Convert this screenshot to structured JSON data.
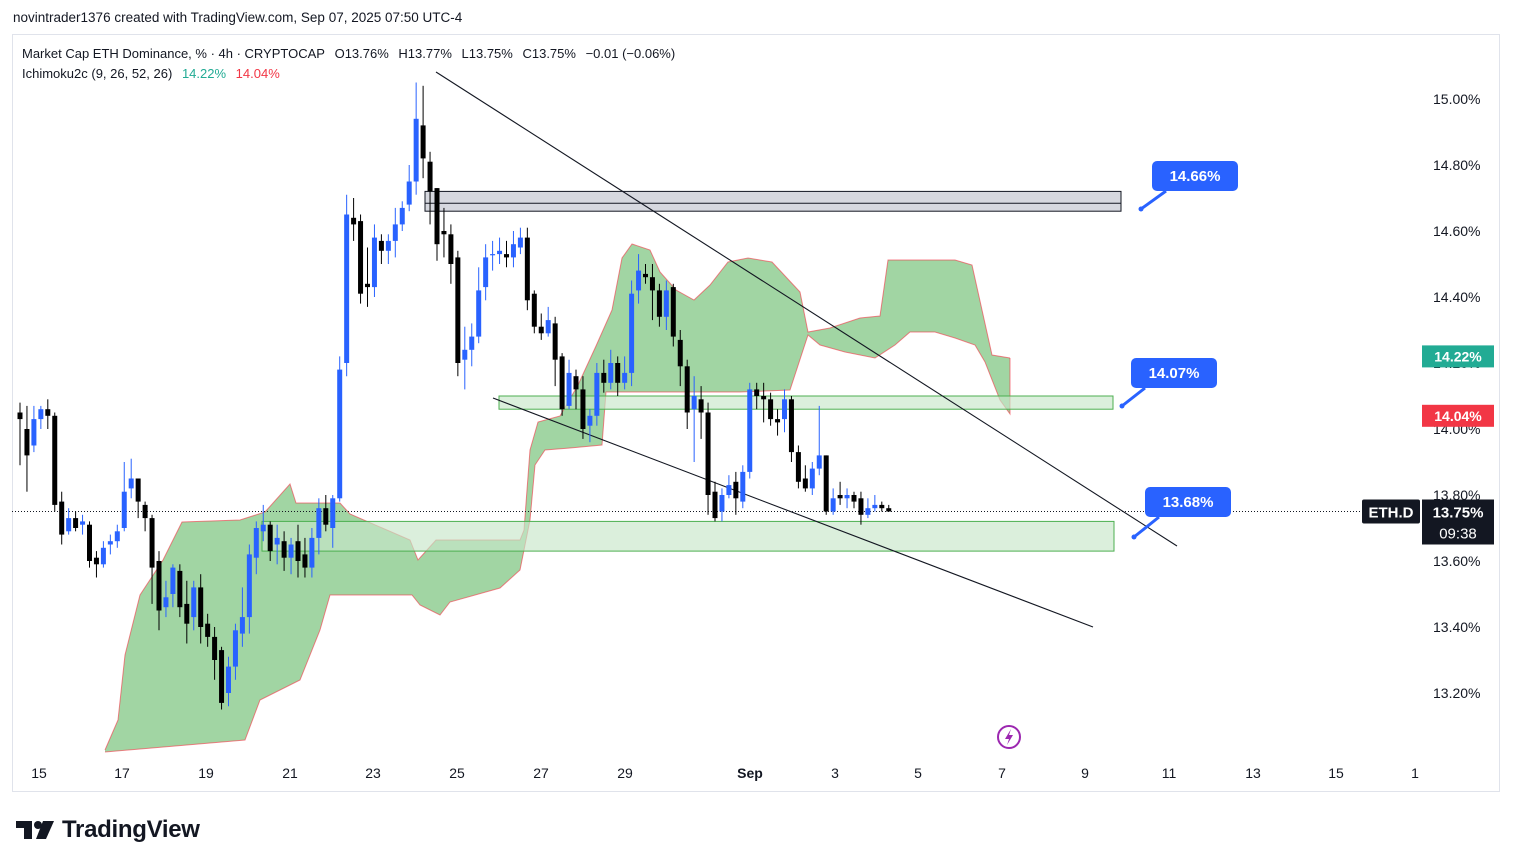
{
  "header": {
    "attribution": "novintrader1376 created with TradingView.com, Sep 07, 2025 07:50 UTC-4"
  },
  "legend": {
    "symbol_line": {
      "title": "Market Cap ETH Dominance, % · 4h · CRYPTOCAP",
      "open": "O13.76%",
      "high": "H13.77%",
      "low": "L13.75%",
      "close": "C13.75%",
      "change": "−0.01 (−0.06%)"
    },
    "indicator": {
      "name": "Ichimoku2c (9, 26, 52, 26)",
      "value_green": "14.22%",
      "value_red": "14.04%"
    }
  },
  "colors": {
    "bull_candle": "#2962ff",
    "bear_candle": "#000000",
    "cloud_fill": "#81c784",
    "cloud_edge_red": "#f23645",
    "zone_fill": "#c8e6c9",
    "resistance_zone": "#b2b5be",
    "callout": "#2962ff",
    "badge_green": "#22ab94",
    "badge_red": "#f23645",
    "badge_dark": "#131722"
  },
  "chart_data": {
    "type": "candlestick",
    "symbol": "ETH.D",
    "timeframe": "4h",
    "y_axis": {
      "ticks": [
        "15.00%",
        "14.80%",
        "14.60%",
        "14.40%",
        "14.20%",
        "14.00%",
        "13.80%",
        "13.60%",
        "13.40%",
        "13.20%"
      ],
      "range": [
        13.07,
        15.1
      ]
    },
    "x_axis": {
      "ticks": [
        "15",
        "17",
        "19",
        "21",
        "23",
        "25",
        "27",
        "29",
        "Sep",
        "3",
        "5",
        "7",
        "9",
        "11",
        "13",
        "15",
        "1"
      ]
    },
    "current_price": {
      "symbol_badge": "ETH.D",
      "price": "13.75%",
      "countdown": "09:38",
      "value": 13.75
    },
    "indicator_badges": [
      {
        "label": "14.22%",
        "value": 14.22,
        "color": "green"
      },
      {
        "label": "14.04%",
        "value": 14.04,
        "color": "red"
      }
    ],
    "annotations": [
      {
        "label": "14.66%",
        "kind": "resistance zone",
        "range": [
          14.66,
          14.72
        ]
      },
      {
        "label": "14.07%",
        "kind": "support zone",
        "range": [
          14.06,
          14.1
        ]
      },
      {
        "label": "13.68%",
        "kind": "support zone",
        "range": [
          13.63,
          13.72
        ]
      }
    ],
    "candles": [
      [
        14.05,
        14.03,
        14.08,
        13.89
      ],
      [
        14.0,
        13.92,
        14.07,
        13.81
      ],
      [
        13.95,
        14.03,
        14.07,
        13.93
      ],
      [
        14.03,
        14.06,
        14.07,
        14.0
      ],
      [
        14.06,
        14.04,
        14.09,
        14.0
      ],
      [
        14.04,
        13.77,
        14.05,
        13.75
      ],
      [
        13.78,
        13.68,
        13.81,
        13.65
      ],
      [
        13.69,
        13.73,
        13.76,
        13.68
      ],
      [
        13.73,
        13.7,
        13.75,
        13.69
      ],
      [
        13.71,
        13.72,
        13.74,
        13.68
      ],
      [
        13.71,
        13.6,
        13.72,
        13.58
      ],
      [
        13.61,
        13.59,
        13.63,
        13.55
      ],
      [
        13.59,
        13.64,
        13.66,
        13.58
      ],
      [
        13.65,
        13.66,
        13.68,
        13.62
      ],
      [
        13.66,
        13.69,
        13.71,
        13.64
      ],
      [
        13.7,
        13.81,
        13.9,
        13.69
      ],
      [
        13.82,
        13.85,
        13.91,
        13.79
      ],
      [
        13.85,
        13.78,
        13.85,
        13.73
      ],
      [
        13.77,
        13.73,
        13.78,
        13.69
      ],
      [
        13.73,
        13.58,
        13.74,
        13.47
      ],
      [
        13.6,
        13.45,
        13.63,
        13.39
      ],
      [
        13.46,
        13.49,
        13.54,
        13.43
      ],
      [
        13.5,
        13.58,
        13.59,
        13.46
      ],
      [
        13.57,
        13.46,
        13.59,
        13.43
      ],
      [
        13.47,
        13.41,
        13.54,
        13.35
      ],
      [
        13.43,
        13.52,
        13.54,
        13.39
      ],
      [
        13.52,
        13.4,
        13.56,
        13.35
      ],
      [
        13.41,
        13.37,
        13.44,
        13.34
      ],
      [
        13.37,
        13.3,
        13.4,
        13.24
      ],
      [
        13.33,
        13.17,
        13.34,
        13.15
      ],
      [
        13.2,
        13.28,
        13.31,
        13.16
      ],
      [
        13.28,
        13.39,
        13.41,
        13.24
      ],
      [
        13.38,
        13.43,
        13.52,
        13.34
      ],
      [
        13.43,
        13.62,
        13.65,
        13.38
      ],
      [
        13.61,
        13.7,
        13.72,
        13.56
      ],
      [
        13.69,
        13.71,
        13.77,
        13.66
      ],
      [
        13.71,
        13.63,
        13.72,
        13.6
      ],
      [
        13.65,
        13.67,
        13.71,
        13.59
      ],
      [
        13.66,
        13.61,
        13.69,
        13.57
      ],
      [
        13.61,
        13.65,
        13.67,
        13.56
      ],
      [
        13.66,
        13.6,
        13.71,
        13.55
      ],
      [
        13.62,
        13.58,
        13.67,
        13.55
      ],
      [
        13.58,
        13.67,
        13.7,
        13.55
      ],
      [
        13.67,
        13.76,
        13.79,
        13.62
      ],
      [
        13.76,
        13.71,
        13.8,
        13.69
      ],
      [
        13.7,
        13.79,
        13.8,
        13.64
      ],
      [
        13.79,
        14.18,
        14.22,
        13.78
      ],
      [
        14.2,
        14.65,
        14.71,
        14.16
      ],
      [
        14.64,
        14.62,
        14.7,
        14.57
      ],
      [
        14.63,
        14.41,
        14.65,
        14.38
      ],
      [
        14.44,
        14.43,
        14.55,
        14.37
      ],
      [
        14.43,
        14.58,
        14.62,
        14.4
      ],
      [
        14.57,
        14.54,
        14.59,
        14.5
      ],
      [
        14.54,
        14.57,
        14.59,
        14.5
      ],
      [
        14.57,
        14.62,
        14.67,
        14.52
      ],
      [
        14.62,
        14.67,
        14.69,
        14.6
      ],
      [
        14.68,
        14.75,
        14.8,
        14.66
      ],
      [
        14.75,
        14.94,
        15.05,
        14.71
      ],
      [
        14.92,
        14.82,
        15.04,
        14.76
      ],
      [
        14.81,
        14.72,
        14.84,
        14.62
      ],
      [
        14.73,
        14.56,
        14.73,
        14.51
      ],
      [
        14.6,
        14.59,
        14.67,
        14.52
      ],
      [
        14.59,
        14.5,
        14.62,
        14.44
      ],
      [
        14.52,
        14.2,
        14.54,
        14.16
      ],
      [
        14.21,
        14.24,
        14.31,
        14.12
      ],
      [
        14.24,
        14.28,
        14.32,
        14.19
      ],
      [
        14.28,
        14.42,
        14.49,
        14.26
      ],
      [
        14.43,
        14.52,
        14.56,
        14.39
      ],
      [
        14.53,
        14.53,
        14.57,
        14.48
      ],
      [
        14.53,
        14.54,
        14.58,
        14.5
      ],
      [
        14.53,
        14.52,
        14.57,
        14.49
      ],
      [
        14.52,
        14.56,
        14.6,
        14.49
      ],
      [
        14.55,
        14.58,
        14.61,
        14.53
      ],
      [
        14.58,
        14.39,
        14.61,
        14.36
      ],
      [
        14.41,
        14.31,
        14.42,
        14.29
      ],
      [
        14.31,
        14.29,
        14.35,
        14.27
      ],
      [
        14.29,
        14.33,
        14.37,
        14.28
      ],
      [
        14.32,
        14.21,
        14.34,
        14.13
      ],
      [
        14.22,
        14.06,
        14.23,
        14.04
      ],
      [
        14.07,
        14.17,
        14.21,
        14.06
      ],
      [
        14.16,
        14.12,
        14.18,
        14.06
      ],
      [
        14.12,
        14.0,
        14.16,
        13.97
      ],
      [
        14.01,
        14.04,
        14.06,
        13.96
      ],
      [
        14.04,
        14.17,
        14.2,
        14.01
      ],
      [
        14.17,
        14.14,
        14.21,
        14.11
      ],
      [
        14.14,
        14.2,
        14.24,
        14.12
      ],
      [
        14.2,
        14.14,
        14.22,
        14.1
      ],
      [
        14.14,
        14.17,
        14.22,
        14.12
      ],
      [
        14.17,
        14.41,
        14.45,
        14.13
      ],
      [
        14.42,
        14.48,
        14.53,
        14.38
      ],
      [
        14.47,
        14.46,
        14.5,
        14.44
      ],
      [
        14.46,
        14.42,
        14.5,
        14.33
      ],
      [
        14.42,
        14.34,
        14.44,
        14.31
      ],
      [
        14.34,
        14.42,
        14.45,
        14.3
      ],
      [
        14.43,
        14.28,
        14.44,
        14.25
      ],
      [
        14.27,
        14.19,
        14.3,
        14.13
      ],
      [
        14.19,
        14.05,
        14.21,
        14.0
      ],
      [
        14.06,
        14.1,
        14.16,
        13.9
      ],
      [
        14.09,
        14.05,
        14.13,
        13.97
      ],
      [
        14.05,
        13.8,
        14.08,
        13.74
      ],
      [
        13.81,
        13.73,
        13.84,
        13.72
      ],
      [
        13.75,
        13.8,
        13.82,
        13.72
      ],
      [
        13.8,
        13.83,
        13.86,
        13.79
      ],
      [
        13.84,
        13.79,
        13.87,
        13.74
      ],
      [
        13.78,
        13.87,
        13.89,
        13.76
      ],
      [
        13.87,
        14.12,
        14.14,
        13.85
      ],
      [
        14.12,
        14.1,
        14.14,
        14.06
      ],
      [
        14.1,
        14.09,
        14.14,
        14.02
      ],
      [
        14.09,
        14.03,
        14.11,
        14.01
      ],
      [
        14.03,
        14.02,
        14.06,
        13.98
      ],
      [
        14.03,
        14.09,
        14.12,
        13.99
      ],
      [
        14.09,
        13.93,
        14.1,
        13.9
      ],
      [
        13.93,
        13.84,
        13.95,
        13.82
      ],
      [
        13.85,
        13.82,
        13.89,
        13.81
      ],
      [
        13.82,
        13.88,
        13.9,
        13.8
      ],
      [
        13.88,
        13.92,
        14.07,
        13.86
      ],
      [
        13.92,
        13.75,
        13.92,
        13.74
      ],
      [
        13.75,
        13.79,
        13.82,
        13.74
      ],
      [
        13.8,
        13.79,
        13.84,
        13.77
      ],
      [
        13.79,
        13.8,
        13.82,
        13.76
      ],
      [
        13.8,
        13.78,
        13.81,
        13.76
      ],
      [
        13.79,
        13.74,
        13.81,
        13.71
      ],
      [
        13.74,
        13.76,
        13.79,
        13.73
      ],
      [
        13.76,
        13.77,
        13.8,
        13.75
      ],
      [
        13.77,
        13.76,
        13.78,
        13.75
      ],
      [
        13.76,
        13.75,
        13.77,
        13.75
      ]
    ]
  },
  "watermark": {
    "brand": "TradingView"
  }
}
